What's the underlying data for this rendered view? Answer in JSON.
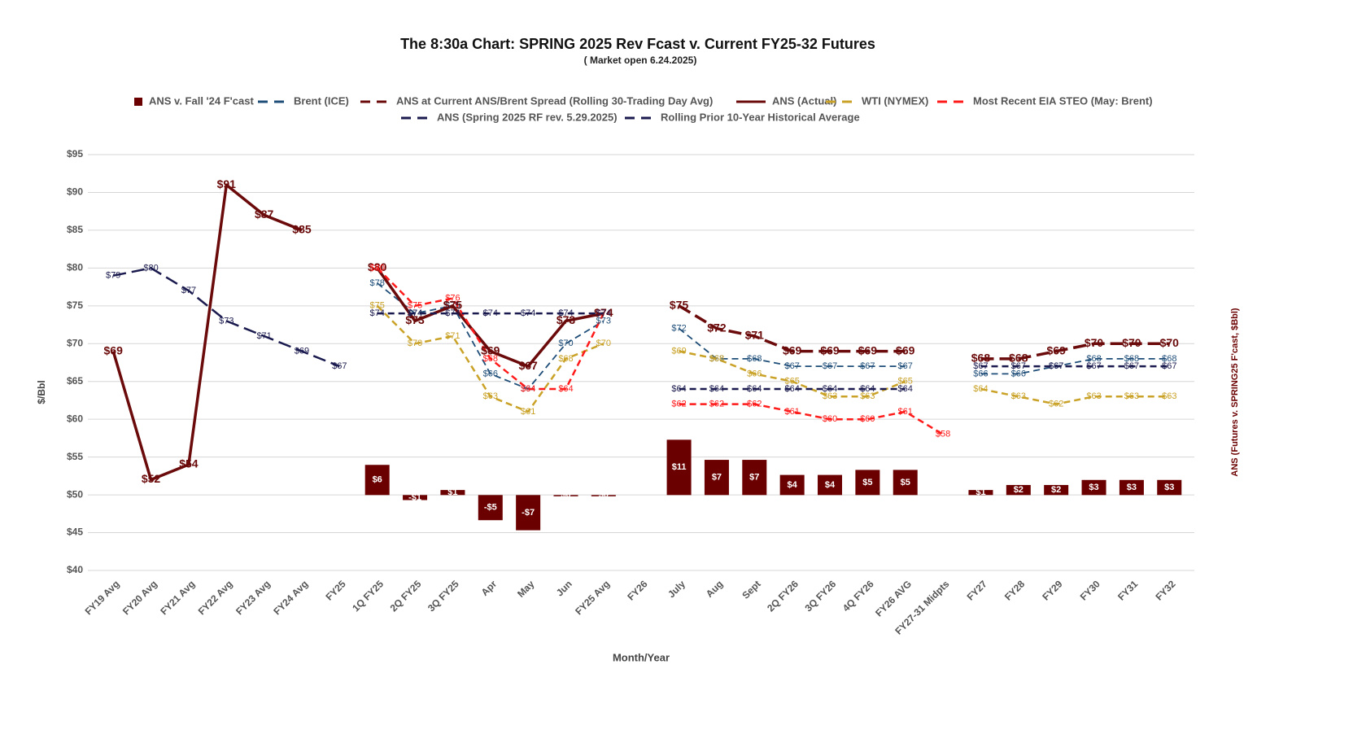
{
  "chart_data": {
    "type": "line",
    "title": "The 8:30a Chart: SPRING 2025 Rev Fcast v. Current FY25-32 Futures",
    "subtitle": "( Market open 6.24.2025)",
    "x_label": "Month/Year",
    "y_label": "$/Bbl",
    "y2_label": "ANS (Futures v. SPRING25 F'cast, $Bbl)",
    "categories": [
      "FY19 Avg",
      "FY20 Avg",
      "FY21 Avg",
      "FY22 Avg",
      "FY23 Avg",
      "FY24 Avg",
      "FY25",
      "1Q FY25",
      "2Q FY25",
      "3Q FY25",
      "Apr",
      "May",
      "Jun",
      "FY25 Avg",
      "FY26",
      "July",
      "Aug",
      "Sept",
      "2Q FY26",
      "3Q FY26",
      "4Q FY26",
      "FY26 AVG",
      "FY27-31 Midpts",
      "FY27",
      "FY28",
      "FY29",
      "FY30",
      "FY31",
      "FY32"
    ],
    "ylim": [
      40,
      95
    ],
    "yticks": [
      {
        "value": 40,
        "label": "$40"
      },
      {
        "value": 45,
        "label": "$45"
      },
      {
        "value": 50,
        "label": "$50"
      },
      {
        "value": 55,
        "label": "$55"
      },
      {
        "value": 60,
        "label": "$60"
      },
      {
        "value": 65,
        "label": "$65"
      },
      {
        "value": 70,
        "label": "$70"
      },
      {
        "value": 75,
        "label": "$75"
      },
      {
        "value": 80,
        "label": "$80"
      },
      {
        "value": 85,
        "label": "$85"
      },
      {
        "value": 90,
        "label": "$90"
      },
      {
        "value": 95,
        "label": "$95"
      }
    ],
    "y2lim": [
      -15,
      67.7
    ],
    "grid": true,
    "legend": "top",
    "series": [
      {
        "name": "ANS v. Fall '24 F'cast",
        "type": "bar",
        "axis": "y2",
        "color": "#6b0000",
        "values": [
          null,
          null,
          null,
          null,
          null,
          null,
          null,
          6,
          -1,
          1,
          -5,
          -7,
          0,
          0,
          null,
          11,
          7,
          7,
          4,
          4,
          5,
          5,
          null,
          1,
          2,
          2,
          3,
          3,
          3
        ],
        "value_labels": [
          null,
          null,
          null,
          null,
          null,
          null,
          null,
          "$6",
          "-$1",
          "$1",
          "-$5",
          "-$7",
          "$0",
          "$0",
          null,
          "$11",
          "$7",
          "$7",
          "$4",
          "$4",
          "$5",
          "$5",
          null,
          "$1",
          "$2",
          "$2",
          "$3",
          "$3",
          "$3"
        ]
      },
      {
        "name": "Brent (ICE)",
        "type": "line",
        "line_style": "dashed",
        "color": "#1f4e79",
        "values": [
          null,
          null,
          null,
          null,
          null,
          null,
          null,
          78,
          74,
          75,
          66,
          64,
          70,
          73,
          null,
          72,
          68,
          68,
          67,
          67,
          67,
          67,
          null,
          66,
          66,
          67,
          68,
          68,
          68
        ],
        "value_labels": [
          null,
          null,
          null,
          null,
          null,
          null,
          null,
          "$78",
          "$74",
          "$75",
          "$66",
          "$64",
          "$70",
          "$73",
          null,
          "$72",
          "$68",
          "$68",
          "$67",
          "$67",
          "$67",
          "$67",
          null,
          "$66",
          "$66",
          "$67",
          "$68",
          "$68",
          "$68"
        ]
      },
      {
        "name": "ANS at Current ANS/Brent Spread (Rolling 30-Trading Day Avg)",
        "type": "line",
        "line_style": "long-dashed",
        "color": "#6b0a0a",
        "values": [
          null,
          null,
          null,
          null,
          null,
          null,
          null,
          null,
          null,
          null,
          null,
          null,
          null,
          null,
          null,
          75,
          72,
          71,
          69,
          69,
          69,
          69,
          null,
          68,
          68,
          69,
          70,
          70,
          70
        ],
        "value_labels": [
          null,
          null,
          null,
          null,
          null,
          null,
          null,
          null,
          null,
          null,
          null,
          null,
          null,
          null,
          null,
          "$75",
          "$72",
          "$71",
          "$69",
          "$69",
          "$69",
          "$69",
          null,
          "$68",
          "$68",
          "$69",
          "$70",
          "$70",
          "$70"
        ]
      },
      {
        "name": "ANS (Actual)",
        "type": "line",
        "line_style": "solid",
        "color": "#6b0a0a",
        "values": [
          69,
          52,
          54,
          91,
          87,
          85,
          null,
          80,
          73,
          75,
          69,
          67,
          73,
          74,
          null,
          null,
          null,
          null,
          null,
          null,
          null,
          null,
          null,
          null,
          null,
          null,
          null,
          null,
          null
        ],
        "value_labels": [
          "$69",
          "$52",
          "$54",
          "$91",
          "$87",
          "$85",
          null,
          "$80",
          "$73",
          "$75",
          "$69",
          "$67",
          "$73",
          "$74",
          null,
          null,
          null,
          null,
          null,
          null,
          null,
          null,
          null,
          null,
          null,
          null,
          null,
          null,
          null
        ]
      },
      {
        "name": "WTI (NYMEX)",
        "type": "line",
        "line_style": "dashed",
        "color": "#c9a227",
        "values": [
          null,
          null,
          null,
          null,
          null,
          null,
          null,
          75,
          70,
          71,
          63,
          61,
          68,
          70,
          null,
          69,
          68,
          66,
          65,
          63,
          63,
          65,
          null,
          64,
          63,
          62,
          63,
          63,
          63
        ],
        "value_labels": [
          null,
          null,
          null,
          null,
          null,
          null,
          null,
          "$75",
          "$70",
          "$71",
          "$63",
          "$61",
          "$68",
          "$70",
          null,
          "$69",
          "$68",
          "$66",
          "$65",
          "$63",
          "$63",
          "$65",
          null,
          "$64",
          "$63",
          "$62",
          "$63",
          "$63",
          "$63"
        ]
      },
      {
        "name": "Most Recent EIA STEO (May: Brent)",
        "type": "line",
        "line_style": "dashed",
        "color": "#ff1a1a",
        "values": [
          null,
          null,
          null,
          null,
          null,
          null,
          null,
          80,
          75,
          76,
          68,
          64,
          64,
          74,
          null,
          62,
          62,
          62,
          61,
          60,
          60,
          61,
          58,
          null,
          null,
          null,
          null,
          null,
          null
        ],
        "value_labels": [
          null,
          null,
          null,
          null,
          null,
          null,
          null,
          "$80",
          "$75",
          "$76",
          "$68",
          "$64",
          "$64",
          "$74",
          null,
          "$62",
          "$62",
          "$62",
          "$61",
          "$60",
          "$60",
          "$61",
          "$58",
          null,
          null,
          null,
          null,
          null,
          null
        ]
      },
      {
        "name": "ANS (Spring 2025 RF rev. 5.29.2025)",
        "type": "line",
        "line_style": "dashed",
        "color": "#1a1a4e",
        "values": [
          null,
          null,
          null,
          null,
          null,
          null,
          null,
          74,
          74,
          74,
          74,
          74,
          74,
          74,
          null,
          64,
          64,
          64,
          64,
          64,
          64,
          64,
          null,
          67,
          67,
          67,
          67,
          67,
          67
        ],
        "value_labels": [
          null,
          null,
          null,
          null,
          null,
          null,
          null,
          "$74",
          "$74",
          "$74",
          "$74",
          "$74",
          "$74",
          "$74",
          null,
          "$64",
          "$64",
          "$64",
          "$64",
          "$64",
          "$64",
          "$64",
          null,
          "$67",
          "$67",
          "$67",
          "$67",
          "$67",
          "$67"
        ]
      },
      {
        "name": "Rolling Prior 10-Year Historical Average",
        "type": "line",
        "line_style": "long-dashed",
        "color": "#1a1a4e",
        "values": [
          79,
          80,
          77,
          73,
          71,
          69,
          67,
          null,
          null,
          null,
          null,
          null,
          null,
          null,
          null,
          null,
          null,
          null,
          null,
          null,
          null,
          null,
          null,
          null,
          null,
          null,
          null,
          null,
          null
        ],
        "value_labels": [
          "$79",
          "$80",
          "$77",
          "$73",
          "$71",
          "$69",
          "$67",
          null,
          null,
          null,
          null,
          null,
          null,
          null,
          null,
          null,
          null,
          null,
          null,
          null,
          null,
          null,
          null,
          null,
          null,
          null,
          null,
          null,
          null
        ]
      }
    ]
  }
}
